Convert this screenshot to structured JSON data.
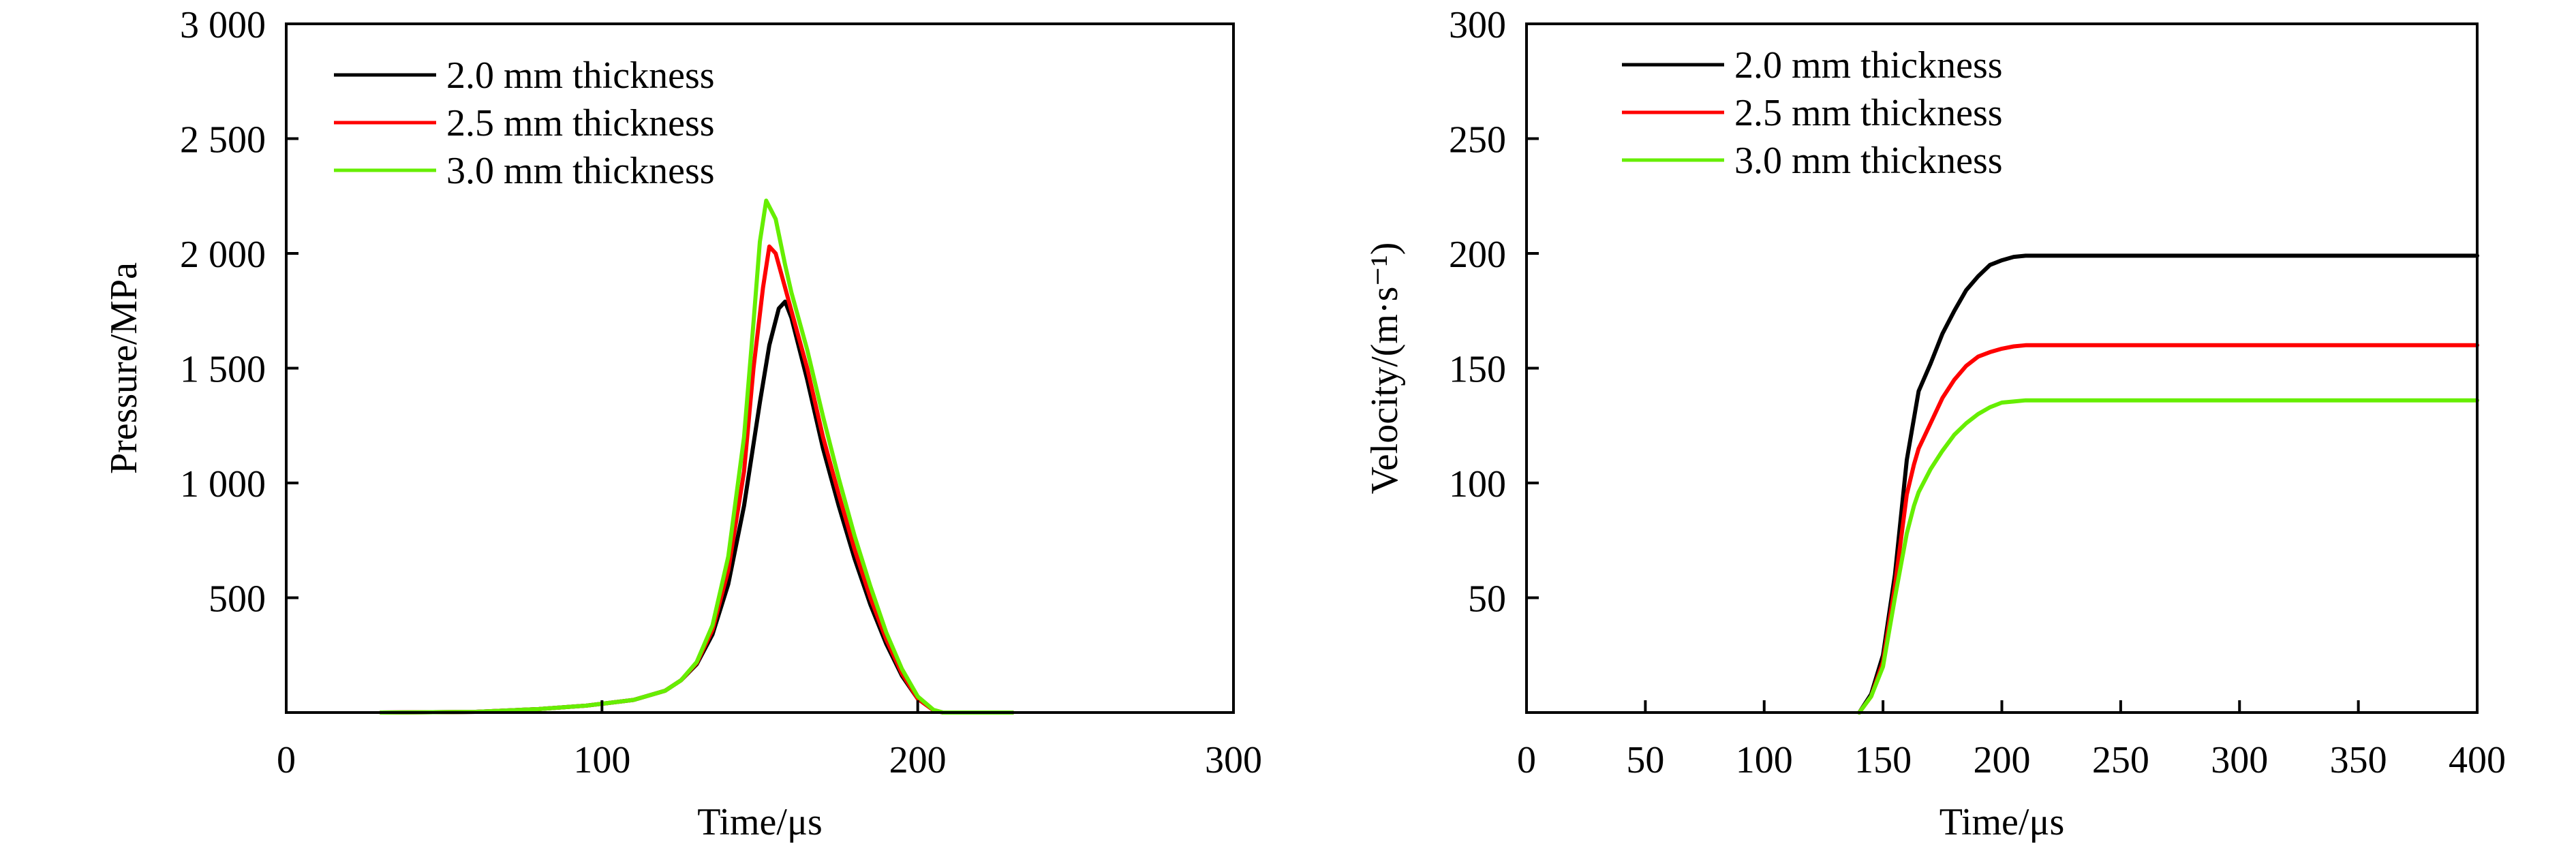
{
  "chart_data": [
    {
      "type": "line",
      "title": "",
      "xlabel": "Time/μs",
      "ylabel": "Pressure/MPa",
      "xlim": [
        0,
        300
      ],
      "ylim": [
        0,
        3000
      ],
      "xticks": [
        0,
        100,
        200,
        300
      ],
      "xtick_labels": [
        "0",
        "100",
        "200",
        "300"
      ],
      "yticks": [
        500,
        1000,
        1500,
        2000,
        2500,
        3000
      ],
      "ytick_labels": [
        "500",
        "1 000",
        "1 500",
        "2 000",
        "2 500",
        "3 000"
      ],
      "grid": false,
      "legend_position": "top-left",
      "series": [
        {
          "name": "2.0 mm thickness",
          "color": "#000000",
          "x": [
            30,
            60,
            80,
            95,
            110,
            120,
            125,
            130,
            135,
            140,
            145,
            150,
            153,
            156,
            158,
            160,
            165,
            170,
            175,
            180,
            185,
            190,
            195,
            200,
            205,
            208,
            215,
            230
          ],
          "y": [
            0,
            3,
            15,
            30,
            55,
            95,
            140,
            210,
            340,
            560,
            900,
            1350,
            1600,
            1760,
            1790,
            1720,
            1450,
            1150,
            900,
            670,
            470,
            300,
            160,
            60,
            10,
            0,
            0,
            0
          ]
        },
        {
          "name": "2.5 mm thickness",
          "color": "#ff0000",
          "x": [
            30,
            60,
            80,
            95,
            110,
            120,
            125,
            130,
            135,
            140,
            145,
            148,
            151,
            153,
            155,
            158,
            160,
            165,
            170,
            175,
            180,
            185,
            190,
            195,
            200,
            205,
            208,
            215,
            230
          ],
          "y": [
            0,
            3,
            15,
            30,
            55,
            95,
            140,
            215,
            360,
            620,
            1050,
            1500,
            1850,
            2030,
            2000,
            1850,
            1750,
            1500,
            1200,
            950,
            710,
            500,
            320,
            170,
            60,
            10,
            0,
            0,
            0
          ]
        },
        {
          "name": "3.0 mm thickness",
          "color": "#66ee00",
          "x": [
            30,
            60,
            80,
            95,
            110,
            120,
            125,
            130,
            135,
            140,
            145,
            148,
            150,
            152,
            155,
            158,
            160,
            165,
            170,
            175,
            180,
            185,
            190,
            195,
            200,
            205,
            208,
            215,
            230
          ],
          "y": [
            0,
            3,
            15,
            30,
            55,
            95,
            140,
            220,
            380,
            680,
            1200,
            1700,
            2050,
            2230,
            2150,
            1950,
            1830,
            1580,
            1290,
            1020,
            770,
            550,
            350,
            190,
            70,
            12,
            0,
            0,
            0
          ]
        }
      ]
    },
    {
      "type": "line",
      "title": "",
      "xlabel": "Time/μs",
      "ylabel": "Velocity/(m·s⁻¹)",
      "xlim": [
        0,
        400
      ],
      "ylim": [
        0,
        300
      ],
      "xticks": [
        0,
        50,
        100,
        150,
        200,
        250,
        300,
        350,
        400
      ],
      "xtick_labels": [
        "0",
        "50",
        "100",
        "150",
        "200",
        "250",
        "300",
        "350",
        "400"
      ],
      "yticks": [
        50,
        100,
        150,
        200,
        250,
        300
      ],
      "ytick_labels": [
        "50",
        "100",
        "150",
        "200",
        "250",
        "300"
      ],
      "grid": false,
      "legend_position": "top-left",
      "series": [
        {
          "name": "2.0 mm thickness",
          "color": "#000000",
          "x": [
            140,
            145,
            150,
            155,
            160,
            165,
            170,
            175,
            180,
            185,
            190,
            195,
            200,
            205,
            210,
            215,
            400
          ],
          "y": [
            0,
            8,
            25,
            60,
            110,
            140,
            152,
            165,
            175,
            184,
            190,
            195,
            197,
            198.5,
            199,
            199,
            199
          ]
        },
        {
          "name": "2.5 mm thickness",
          "color": "#ff0000",
          "x": [
            140,
            145,
            150,
            155,
            160,
            163,
            165,
            170,
            175,
            180,
            185,
            190,
            195,
            200,
            205,
            210,
            215,
            400
          ],
          "y": [
            0,
            7,
            22,
            55,
            95,
            108,
            115,
            126,
            137,
            145,
            151,
            155,
            157,
            158.5,
            159.5,
            160,
            160,
            160
          ]
        },
        {
          "name": "3.0 mm thickness",
          "color": "#66ee00",
          "x": [
            140,
            145,
            150,
            155,
            160,
            163,
            165,
            170,
            175,
            180,
            185,
            190,
            195,
            200,
            205,
            210,
            215,
            400
          ],
          "y": [
            0,
            7,
            20,
            50,
            78,
            90,
            96,
            106,
            114,
            121,
            126,
            130,
            133,
            135,
            135.5,
            136,
            136,
            136
          ]
        }
      ]
    }
  ]
}
